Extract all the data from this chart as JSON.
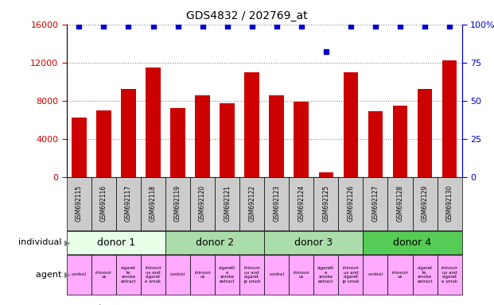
{
  "title": "GDS4832 / 202769_at",
  "samples": [
    "GSM692115",
    "GSM692116",
    "GSM692117",
    "GSM692118",
    "GSM692119",
    "GSM692120",
    "GSM692121",
    "GSM692122",
    "GSM692123",
    "GSM692124",
    "GSM692125",
    "GSM692126",
    "GSM692127",
    "GSM692128",
    "GSM692129",
    "GSM692130"
  ],
  "counts": [
    6200,
    7000,
    9200,
    11500,
    7200,
    8600,
    7700,
    11000,
    8600,
    7900,
    500,
    11000,
    6900,
    7500,
    9200,
    12200
  ],
  "percentile_ranks": [
    99,
    99,
    99,
    99,
    99,
    99,
    99,
    99,
    99,
    99,
    82,
    99,
    99,
    99,
    99,
    99
  ],
  "bar_color": "#cc0000",
  "dot_color": "#0000cc",
  "ylim_left": [
    0,
    16000
  ],
  "ylim_right": [
    0,
    100
  ],
  "yticks_left": [
    0,
    4000,
    8000,
    12000,
    16000
  ],
  "yticks_right": [
    0,
    25,
    50,
    75,
    100
  ],
  "donors": [
    {
      "label": "donor 1",
      "start": 0,
      "end": 4,
      "color": "#e8ffe8"
    },
    {
      "label": "donor 2",
      "start": 4,
      "end": 8,
      "color": "#aaddaa"
    },
    {
      "label": "donor 3",
      "start": 8,
      "end": 12,
      "color": "#aaddaa"
    },
    {
      "label": "donor 4",
      "start": 12,
      "end": 16,
      "color": "#55cc55"
    }
  ],
  "agent_display": [
    "control",
    "rhinovir\nus",
    "cigaret\nte\nsmoke\nextract",
    "rhinovir\nus and\ncigaret\ne smok",
    "control",
    "rhinovir\nus",
    "cigarett\ne\nsmoke\nextract",
    "rhinovir\nus and\ncigaret\nje smok",
    "control",
    "rhinovir\nus",
    "cigarett\ne\nsmoke\nextract",
    "rhinovir\nus and\ncigaret\nje smok",
    "control",
    "rhinovir\nus",
    "cigaret\nte\nsmoke\nextract",
    "rhinovir\nus and\ncigaret\ne smok"
  ],
  "agent_color": "#ffaaff",
  "individual_label": "individual",
  "agent_label": "agent",
  "legend_count_color": "#cc0000",
  "legend_dot_color": "#0000cc",
  "bg_color": "#ffffff",
  "tick_label_color_left": "#cc0000",
  "tick_label_color_right": "#0000cc",
  "grid_color": "#888888",
  "sample_bg_color": "#cccccc",
  "plot_bg_color": "#ffffff"
}
